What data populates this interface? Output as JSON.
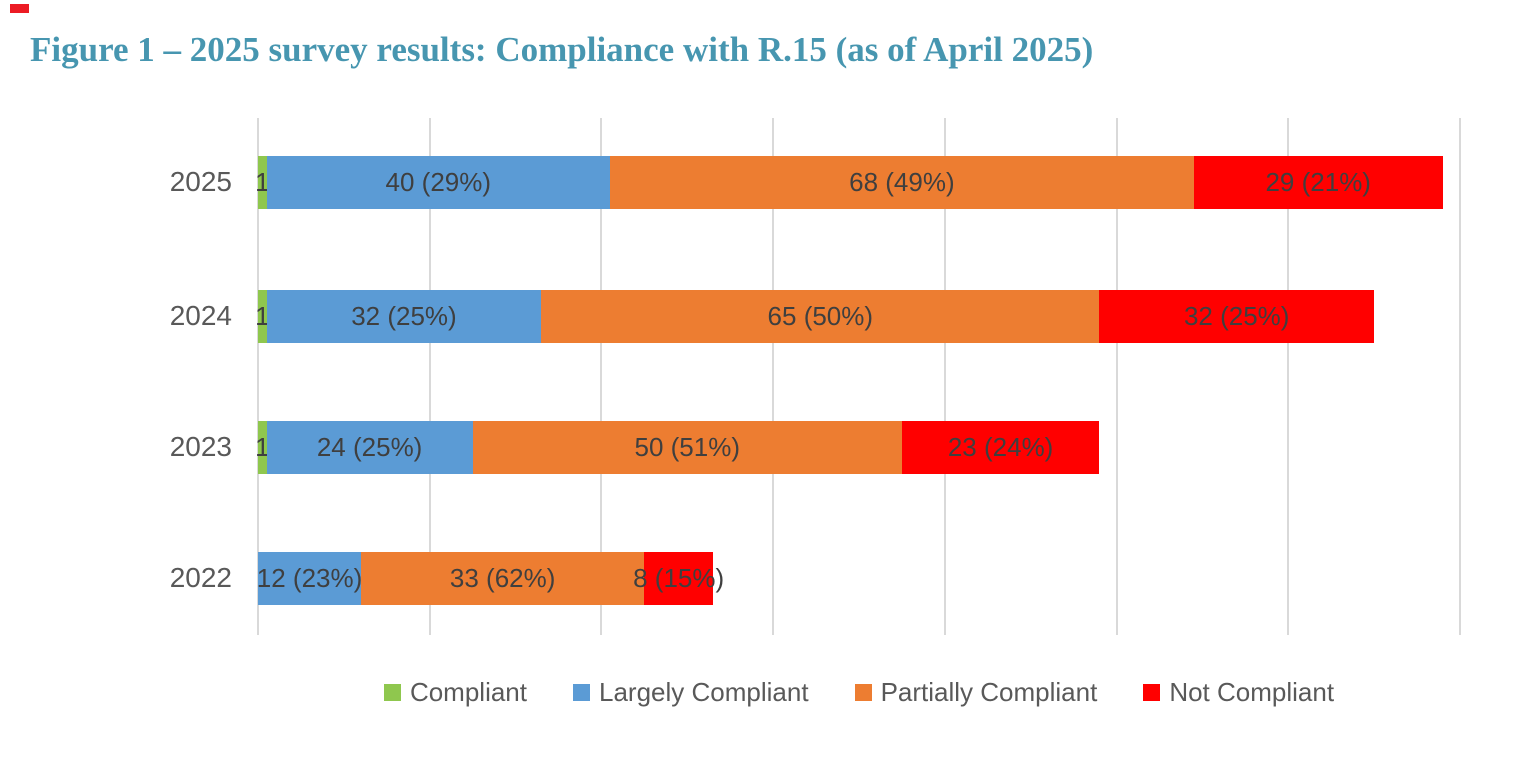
{
  "title": {
    "text": "Figure 1 – 2025 survey results: Compliance with R.15 (as of April 2025)",
    "color": "#4796b0"
  },
  "annotation_marker": {
    "color": "#ec1b24"
  },
  "colors": {
    "gridline": "#d9d9d9",
    "axis_label": "#595959",
    "segment_label": "#3f3f3f"
  },
  "chart_data": {
    "type": "bar",
    "subtype": "horizontal-stacked",
    "title": "2025 survey results: Compliance with R.15 (as of April 2025)",
    "categories": [
      "2025",
      "2024",
      "2023",
      "2022"
    ],
    "series": [
      {
        "name": "Compliant",
        "color": "#8fc74e",
        "values": [
          1,
          1,
          1,
          0
        ],
        "labels": [
          "1",
          "1",
          "1",
          ""
        ]
      },
      {
        "name": "Largely Compliant",
        "color": "#5b9bd5",
        "values": [
          40,
          32,
          24,
          12
        ],
        "labels": [
          "40 (29%)",
          "32 (25%)",
          "24 (25%)",
          "12 (23%)"
        ]
      },
      {
        "name": "Partially Compliant",
        "color": "#ed7d31",
        "values": [
          68,
          65,
          50,
          33
        ],
        "labels": [
          "68 (49%)",
          "65 (50%)",
          "50 (51%)",
          "33 (62%)"
        ]
      },
      {
        "name": "Not Compliant",
        "color": "#ff0000",
        "values": [
          29,
          32,
          23,
          8
        ],
        "labels": [
          "29 (21%)",
          "32 (25%)",
          "23 (24%)",
          "8 (15%)"
        ]
      }
    ],
    "totals": [
      138,
      130,
      98,
      53
    ],
    "x_axis": {
      "min": 0,
      "max": 140,
      "gridline_step": 20,
      "tick_labels_visible": false,
      "grid": true
    },
    "legend": {
      "position": "bottom",
      "items": [
        "Compliant",
        "Largely Compliant",
        "Partially Compliant",
        "Not Compliant"
      ]
    }
  }
}
